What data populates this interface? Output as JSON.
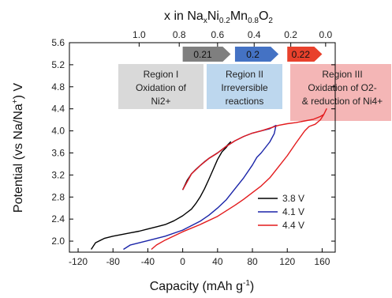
{
  "chart_data": {
    "type": "line",
    "xlabel": "Capacity (mAh g",
    "xlabel_sup": "-1",
    "xlabel_close": ")",
    "ylabel": "Potential (vs Na/Na",
    "ylabel_sup": "+",
    "ylabel_close": ") V",
    "xlim": [
      -130,
      175
    ],
    "ylim": [
      1.8,
      5.6
    ],
    "x_ticks": [
      -120,
      -80,
      -40,
      0,
      40,
      80,
      120,
      160
    ],
    "y_ticks": [
      2.0,
      2.4,
      2.8,
      3.2,
      3.6,
      4.0,
      4.4,
      4.8,
      5.2,
      5.6
    ],
    "y_tick_labels": [
      "2.0",
      "2.4",
      "2.8",
      "3.2",
      "3.6",
      "4.0",
      "4.4",
      "4.8",
      "5.2",
      "5.6"
    ],
    "top_axis": {
      "title_parts": [
        "x in Na",
        "x",
        "Ni",
        "0.2",
        "Mn",
        "0.8",
        "O",
        "2"
      ],
      "ticks": [
        {
          "label": "1.0",
          "capacity": -50
        },
        {
          "label": "0.8",
          "capacity": -4
        },
        {
          "label": "0.6",
          "capacity": 40
        },
        {
          "label": "0.4",
          "capacity": 82
        },
        {
          "label": "0.2",
          "capacity": 124
        },
        {
          "label": "0.0",
          "capacity": 164
        }
      ]
    },
    "arrows": [
      {
        "label": "0.21",
        "x0": 0,
        "x1": 55,
        "color": "#7f7f7f"
      },
      {
        "label": "0.2",
        "x0": 60,
        "x1": 110,
        "color": "#4472c4"
      },
      {
        "label": "0.22",
        "x0": 120,
        "x1": 160,
        "color": "#e8412c"
      }
    ],
    "regions": [
      {
        "lines": [
          "Region I",
          "Oxidation of",
          "Ni2+"
        ],
        "color": "#d9d9d9"
      },
      {
        "lines": [
          "Region II",
          "Irreversible",
          "reactions"
        ],
        "color": "#bdd7ee"
      },
      {
        "lines": [
          "Region III",
          "Oxidation of O2-",
          "& reduction of Ni4+"
        ],
        "color": "#f4b6b6"
      }
    ],
    "legend": {
      "placement": "lower-right"
    },
    "series": [
      {
        "name": "3.8 V",
        "color": "#000000",
        "points": [
          [
            0,
            2.93
          ],
          [
            5,
            3.1
          ],
          [
            10,
            3.22
          ],
          [
            15,
            3.3
          ],
          [
            20,
            3.37
          ],
          [
            25,
            3.44
          ],
          [
            30,
            3.5
          ],
          [
            35,
            3.55
          ],
          [
            40,
            3.6
          ],
          [
            45,
            3.66
          ],
          [
            50,
            3.72
          ],
          [
            55,
            3.8
          ],
          [
            50,
            3.7
          ],
          [
            45,
            3.62
          ],
          [
            40,
            3.48
          ],
          [
            35,
            3.3
          ],
          [
            30,
            3.12
          ],
          [
            25,
            2.95
          ],
          [
            20,
            2.8
          ],
          [
            15,
            2.68
          ],
          [
            10,
            2.58
          ],
          [
            0,
            2.46
          ],
          [
            -10,
            2.37
          ],
          [
            -20,
            2.3
          ],
          [
            -30,
            2.26
          ],
          [
            -40,
            2.22
          ],
          [
            -50,
            2.18
          ],
          [
            -60,
            2.15
          ],
          [
            -70,
            2.12
          ],
          [
            -80,
            2.09
          ],
          [
            -90,
            2.05
          ],
          [
            -100,
            1.97
          ],
          [
            -105,
            1.85
          ]
        ]
      },
      {
        "name": "4.1 V",
        "color": "#1a24a8",
        "points": [
          [
            0,
            2.93
          ],
          [
            10,
            3.22
          ],
          [
            20,
            3.37
          ],
          [
            30,
            3.5
          ],
          [
            40,
            3.6
          ],
          [
            50,
            3.72
          ],
          [
            60,
            3.82
          ],
          [
            70,
            3.9
          ],
          [
            80,
            3.96
          ],
          [
            90,
            4.0
          ],
          [
            100,
            4.04
          ],
          [
            107,
            4.1
          ],
          [
            105,
            3.95
          ],
          [
            100,
            3.8
          ],
          [
            95,
            3.7
          ],
          [
            90,
            3.6
          ],
          [
            85,
            3.52
          ],
          [
            80,
            3.38
          ],
          [
            70,
            3.15
          ],
          [
            60,
            2.95
          ],
          [
            50,
            2.75
          ],
          [
            40,
            2.6
          ],
          [
            30,
            2.47
          ],
          [
            20,
            2.36
          ],
          [
            0,
            2.2
          ],
          [
            -20,
            2.09
          ],
          [
            -40,
            2.01
          ],
          [
            -60,
            1.93
          ],
          [
            -68,
            1.85
          ]
        ]
      },
      {
        "name": "4.4 V",
        "color": "#e31a1c",
        "points": [
          [
            0,
            2.93
          ],
          [
            10,
            3.22
          ],
          [
            20,
            3.37
          ],
          [
            30,
            3.5
          ],
          [
            40,
            3.6
          ],
          [
            50,
            3.72
          ],
          [
            60,
            3.82
          ],
          [
            70,
            3.9
          ],
          [
            80,
            3.96
          ],
          [
            90,
            4.0
          ],
          [
            100,
            4.05
          ],
          [
            110,
            4.1
          ],
          [
            120,
            4.13
          ],
          [
            130,
            4.15
          ],
          [
            140,
            4.18
          ],
          [
            150,
            4.21
          ],
          [
            158,
            4.26
          ],
          [
            162,
            4.3
          ],
          [
            165,
            4.4
          ],
          [
            162,
            4.3
          ],
          [
            158,
            4.2
          ],
          [
            152,
            4.12
          ],
          [
            145,
            4.08
          ],
          [
            140,
            4.0
          ],
          [
            130,
            3.78
          ],
          [
            120,
            3.55
          ],
          [
            110,
            3.35
          ],
          [
            100,
            3.15
          ],
          [
            90,
            3.0
          ],
          [
            80,
            2.88
          ],
          [
            70,
            2.76
          ],
          [
            60,
            2.65
          ],
          [
            40,
            2.45
          ],
          [
            20,
            2.3
          ],
          [
            0,
            2.17
          ],
          [
            -20,
            2.02
          ],
          [
            -30,
            1.93
          ],
          [
            -36,
            1.85
          ]
        ]
      }
    ]
  }
}
